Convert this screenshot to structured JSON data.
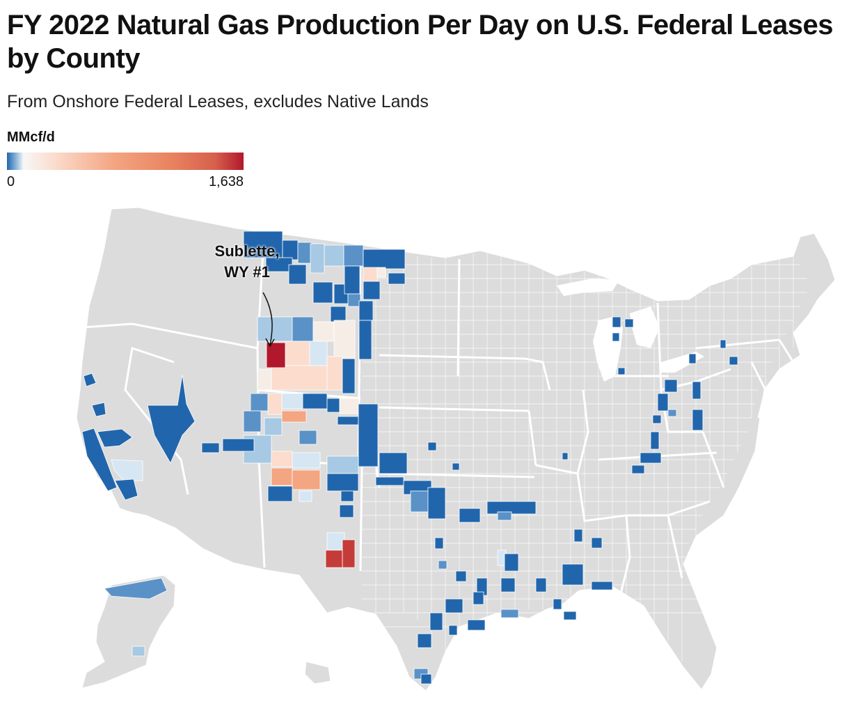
{
  "title": "FY 2022 Natural Gas Production Per Day on U.S. Federal Leases by County",
  "subtitle": "From Onshore Federal Leases, excludes Native Lands",
  "legend": {
    "title": "MMcf/d",
    "min_label": "0",
    "max_label": "1,638",
    "min": 0,
    "max": 1638,
    "colors": [
      "#2166ac",
      "#f7f7f7",
      "#f4a582",
      "#b2182b"
    ]
  },
  "annotation": {
    "line1": "Sublette,",
    "line2": "WY #1"
  },
  "map_colors": {
    "land": "#dcdcdc",
    "border": "#ffffff",
    "very_low": "#2166ac",
    "low": "#5a92c8",
    "low_mid": "#a7c9e3",
    "near_zero": "#d6e6f3",
    "pale": "#f6eee6",
    "light_orange": "#fbdccd",
    "orange": "#f4a582",
    "red": "#c43c39",
    "max": "#b2182b"
  }
}
